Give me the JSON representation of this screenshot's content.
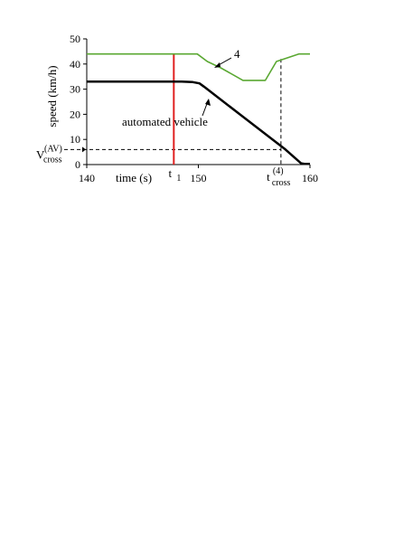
{
  "chart_data": {
    "type": "line",
    "title": "",
    "xlabel": "time (s)",
    "ylabel": "speed (km/h)",
    "xlim": [
      140,
      160
    ],
    "ylim": [
      0,
      50
    ],
    "xticks": [
      140,
      150,
      160
    ],
    "yticks": [
      0,
      10,
      20,
      30,
      40,
      50
    ],
    "grid": false,
    "legend": "none",
    "series": [
      {
        "name": "4",
        "color": "#5aa832",
        "points": [
          [
            140,
            44
          ],
          [
            149,
            44
          ],
          [
            149.9,
            44
          ],
          [
            150.8,
            41
          ],
          [
            152,
            38.5
          ],
          [
            154,
            33.5
          ],
          [
            156,
            33.5
          ],
          [
            157,
            41
          ],
          [
            158,
            42.5
          ],
          [
            159,
            44
          ],
          [
            160,
            44
          ]
        ]
      },
      {
        "name": "automated vehicle",
        "color": "#000000",
        "points": [
          [
            140,
            33
          ],
          [
            148.5,
            33
          ],
          [
            149.5,
            32.8
          ],
          [
            150.1,
            32.3
          ],
          [
            150.5,
            31
          ],
          [
            157.8,
            6
          ],
          [
            159.2,
            0.5
          ],
          [
            159.5,
            0.3
          ],
          [
            160,
            0.3
          ]
        ]
      }
    ],
    "reference_lines": {
      "t1": {
        "x": 147.8,
        "label_main": "t",
        "label_sub": "1",
        "color": "#e02020"
      },
      "t_cross": {
        "x": 157.4,
        "label_main": "t",
        "label_sup": "(4)",
        "label_sub": "cross"
      },
      "v_cross": {
        "y": 6,
        "label_main": "V",
        "label_sup": "(AV)",
        "label_sub": "cross"
      }
    },
    "annotations": {
      "series_4_label": "4",
      "av_label": "automated vehicle"
    }
  }
}
